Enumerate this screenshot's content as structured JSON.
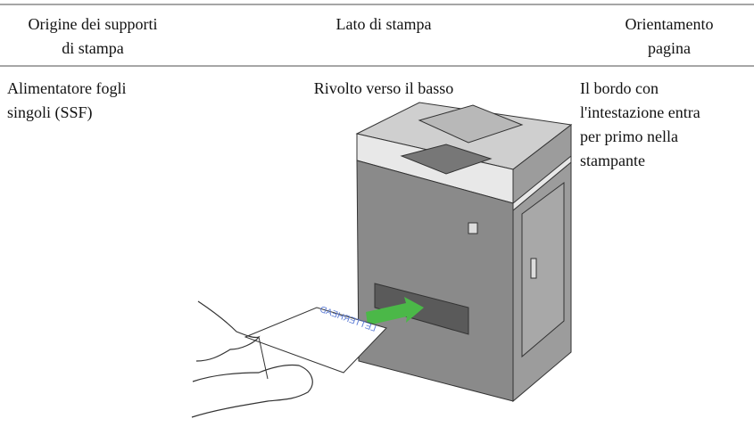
{
  "table": {
    "header": [
      [
        "Origine dei supporti",
        "di stampa"
      ],
      [
        "Lato di stampa"
      ],
      [
        "Orientamento",
        "pagina"
      ]
    ],
    "rows": [
      [
        [
          "Alimentatore fogli",
          "singoli (SSF)"
        ],
        [
          "Rivolto verso il basso"
        ],
        [
          "Il bordo con",
          "l'intestazione entra",
          "per primo nella",
          "stampante"
        ]
      ]
    ]
  },
  "illustration": {
    "paper_label": "LETTERHEAD"
  }
}
